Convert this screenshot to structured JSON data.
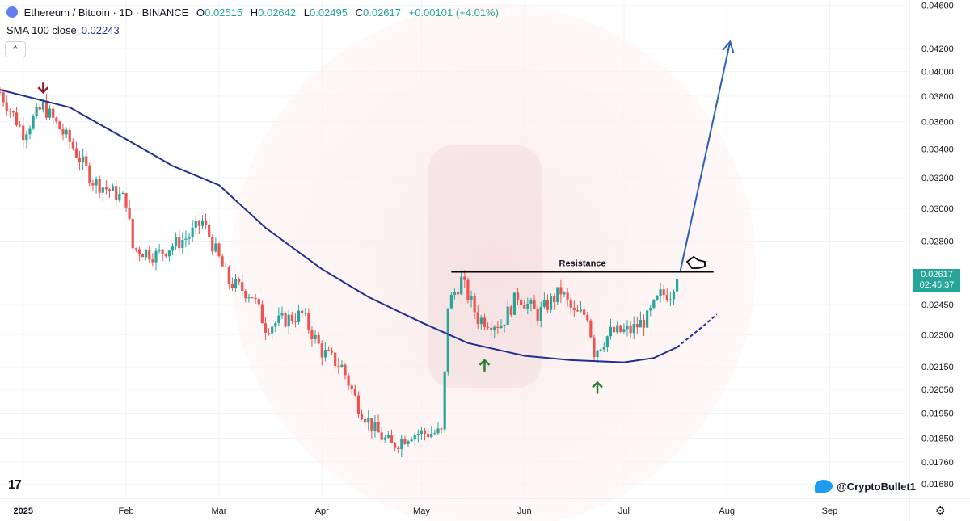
{
  "legend": {
    "symbol": "Ethereum / Bitcoin · 1D · BINANCE",
    "o_label": "O",
    "o": "0.02515",
    "h_label": "H",
    "h": "0.02642",
    "l_label": "L",
    "l": "0.02495",
    "c_label": "C",
    "c": "0.02617",
    "change": "+0.00101 (+4.01%)"
  },
  "sma": {
    "label": "SMA 100 close",
    "value": "0.02243"
  },
  "collapse_icon": "^",
  "last_price": {
    "price": "0.02617",
    "countdown": "02:45:37"
  },
  "watermark": "@CryptoBullet1",
  "tv_logo": "17",
  "colors": {
    "up": "#26a69a",
    "down": "#ef5350",
    "sma": "#1e2f8f",
    "projection": "#2f5fb5",
    "resistance": "#000000"
  },
  "chart_data": {
    "type": "candlestick",
    "title": "Ethereum / Bitcoin · 1D · BINANCE",
    "y_scale": "log",
    "ylim": [
      0.0163,
      0.0465
    ],
    "y_ticks": [
      "0.04600",
      "0.04200",
      "0.04000",
      "0.03800",
      "0.03600",
      "0.03400",
      "0.03200",
      "0.03000",
      "0.02800",
      "0.02450",
      "0.02300",
      "0.02150",
      "0.02050",
      "0.01950",
      "0.01850",
      "0.01760",
      "0.01680"
    ],
    "x_start": "2024-12-25",
    "x_end": "2025-09-25",
    "x_ticks": [
      {
        "date": "2025-01-01",
        "label": "2025"
      },
      {
        "date": "2025-02-01",
        "label": "Feb"
      },
      {
        "date": "2025-03-01",
        "label": "Mar"
      },
      {
        "date": "2025-04-01",
        "label": "Apr"
      },
      {
        "date": "2025-05-01",
        "label": "May"
      },
      {
        "date": "2025-06-01",
        "label": "Jun"
      },
      {
        "date": "2025-07-01",
        "label": "Jul"
      },
      {
        "date": "2025-08-01",
        "label": "Aug"
      },
      {
        "date": "2025-09-01",
        "label": "Sep"
      }
    ],
    "price_anchors": [
      [
        "2024-12-25",
        0.0383
      ],
      [
        "2025-01-01",
        0.0352
      ],
      [
        "2025-01-07",
        0.0372
      ],
      [
        "2025-01-15",
        0.0345
      ],
      [
        "2025-01-22",
        0.0318
      ],
      [
        "2025-02-01",
        0.0305
      ],
      [
        "2025-02-03",
        0.0276
      ],
      [
        "2025-02-10",
        0.0272
      ],
      [
        "2025-02-20",
        0.0283
      ],
      [
        "2025-02-24",
        0.0292
      ],
      [
        "2025-03-04",
        0.0257
      ],
      [
        "2025-03-11",
        0.025
      ],
      [
        "2025-03-15",
        0.0234
      ],
      [
        "2025-03-22",
        0.0238
      ],
      [
        "2025-03-26",
        0.024
      ],
      [
        "2025-04-01",
        0.0222
      ],
      [
        "2025-04-07",
        0.0215
      ],
      [
        "2025-04-12",
        0.0198
      ],
      [
        "2025-04-17",
        0.0188
      ],
      [
        "2025-04-22",
        0.0182
      ],
      [
        "2025-04-28",
        0.0187
      ],
      [
        "2025-05-07",
        0.0187
      ],
      [
        "2025-05-08",
        0.0211
      ],
      [
        "2025-05-09",
        0.0245
      ],
      [
        "2025-05-13",
        0.0258
      ],
      [
        "2025-05-18",
        0.0238
      ],
      [
        "2025-05-25",
        0.0235
      ],
      [
        "2025-05-30",
        0.025
      ],
      [
        "2025-06-05",
        0.024
      ],
      [
        "2025-06-12",
        0.0252
      ],
      [
        "2025-06-16",
        0.024
      ],
      [
        "2025-06-20",
        0.024
      ],
      [
        "2025-06-22",
        0.0222
      ],
      [
        "2025-06-27",
        0.0231
      ],
      [
        "2025-07-03",
        0.0232
      ],
      [
        "2025-07-08",
        0.0238
      ],
      [
        "2025-07-12",
        0.025
      ],
      [
        "2025-07-15",
        0.0251
      ],
      [
        "2025-07-17",
        0.0262
      ]
    ],
    "sma_100": [
      [
        "2024-12-25",
        0.0385
      ],
      [
        "2025-01-15",
        0.0371
      ],
      [
        "2025-02-01",
        0.0347
      ],
      [
        "2025-02-15",
        0.0328
      ],
      [
        "2025-03-01",
        0.0315
      ],
      [
        "2025-03-15",
        0.0288
      ],
      [
        "2025-04-01",
        0.0264
      ],
      [
        "2025-04-15",
        0.0249
      ],
      [
        "2025-05-01",
        0.0236
      ],
      [
        "2025-05-15",
        0.0226
      ],
      [
        "2025-06-01",
        0.022
      ],
      [
        "2025-06-15",
        0.0218
      ],
      [
        "2025-07-01",
        0.0217
      ],
      [
        "2025-07-10",
        0.0219
      ],
      [
        "2025-07-17",
        0.0224
      ]
    ],
    "sma_projection": [
      [
        "2025-07-17",
        0.0224
      ],
      [
        "2025-07-24",
        0.0233
      ],
      [
        "2025-07-29",
        0.024
      ]
    ],
    "resistance": {
      "price": 0.02625,
      "from": "2025-05-10",
      "to": "2025-07-28",
      "label": "Resistance"
    },
    "projection_arrow": {
      "from": [
        "2025-07-18",
        0.0263
      ],
      "to": [
        "2025-08-02",
        0.0426
      ]
    },
    "markers": [
      {
        "type": "down",
        "date": "2025-01-07",
        "price": 0.0383,
        "color": "#8b1c2b"
      },
      {
        "type": "up",
        "date": "2025-05-20",
        "price": 0.0218,
        "color": "#2e7d32"
      },
      {
        "type": "up",
        "date": "2025-06-23",
        "price": 0.0208,
        "color": "#2e7d32"
      }
    ]
  }
}
